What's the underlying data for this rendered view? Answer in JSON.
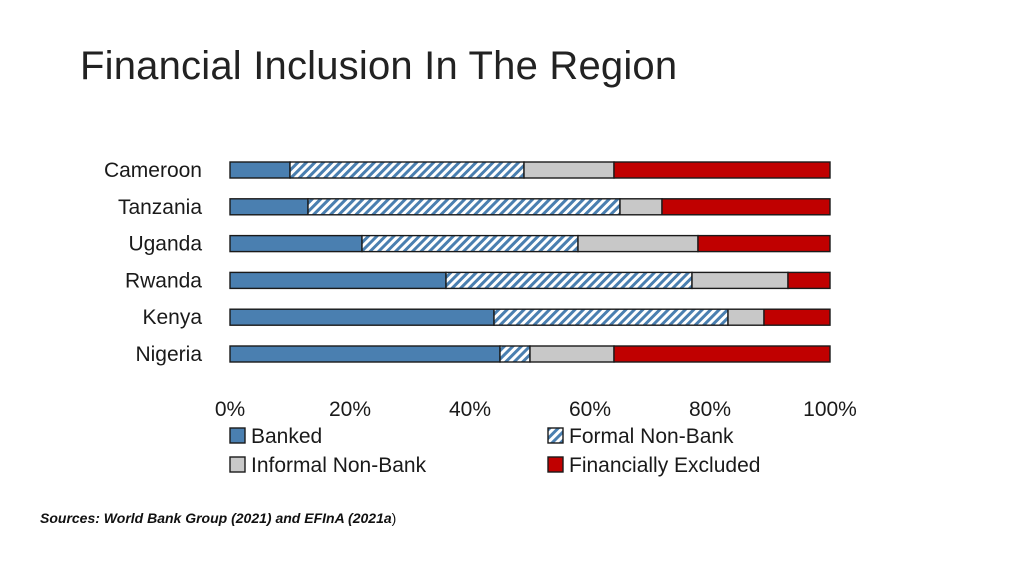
{
  "slide": {
    "title": "Financial Inclusion In The Region",
    "source_main": "Sources: World Bank Group (2021) and EFInA (2021a",
    "source_tail": ")"
  },
  "chart_data": {
    "type": "bar",
    "orientation": "horizontal",
    "stacked": true,
    "percent_stacked": true,
    "categories": [
      "Cameroon",
      "Tanzania",
      "Uganda",
      "Rwanda",
      "Kenya",
      "Nigeria"
    ],
    "series": [
      {
        "name": "Banked",
        "values": [
          10,
          13,
          22,
          36,
          44,
          45
        ],
        "color": "#4a7fb0",
        "pattern": "solid"
      },
      {
        "name": "Formal Non-Bank",
        "values": [
          39,
          52,
          36,
          41,
          39,
          5
        ],
        "color": "#4a7fb0",
        "pattern": "hatch"
      },
      {
        "name": "Informal Non-Bank",
        "values": [
          15,
          7,
          20,
          16,
          6,
          14
        ],
        "color": "#c8c8c8",
        "pattern": "solid"
      },
      {
        "name": "Financially Excluded",
        "values": [
          36,
          28,
          22,
          7,
          11,
          36
        ],
        "color": "#c00000",
        "pattern": "solid"
      }
    ],
    "xlim": [
      0,
      100
    ],
    "xticks": [
      "0%",
      "20%",
      "40%",
      "60%",
      "80%",
      "100%"
    ],
    "grid": false,
    "legend_position": "bottom"
  }
}
